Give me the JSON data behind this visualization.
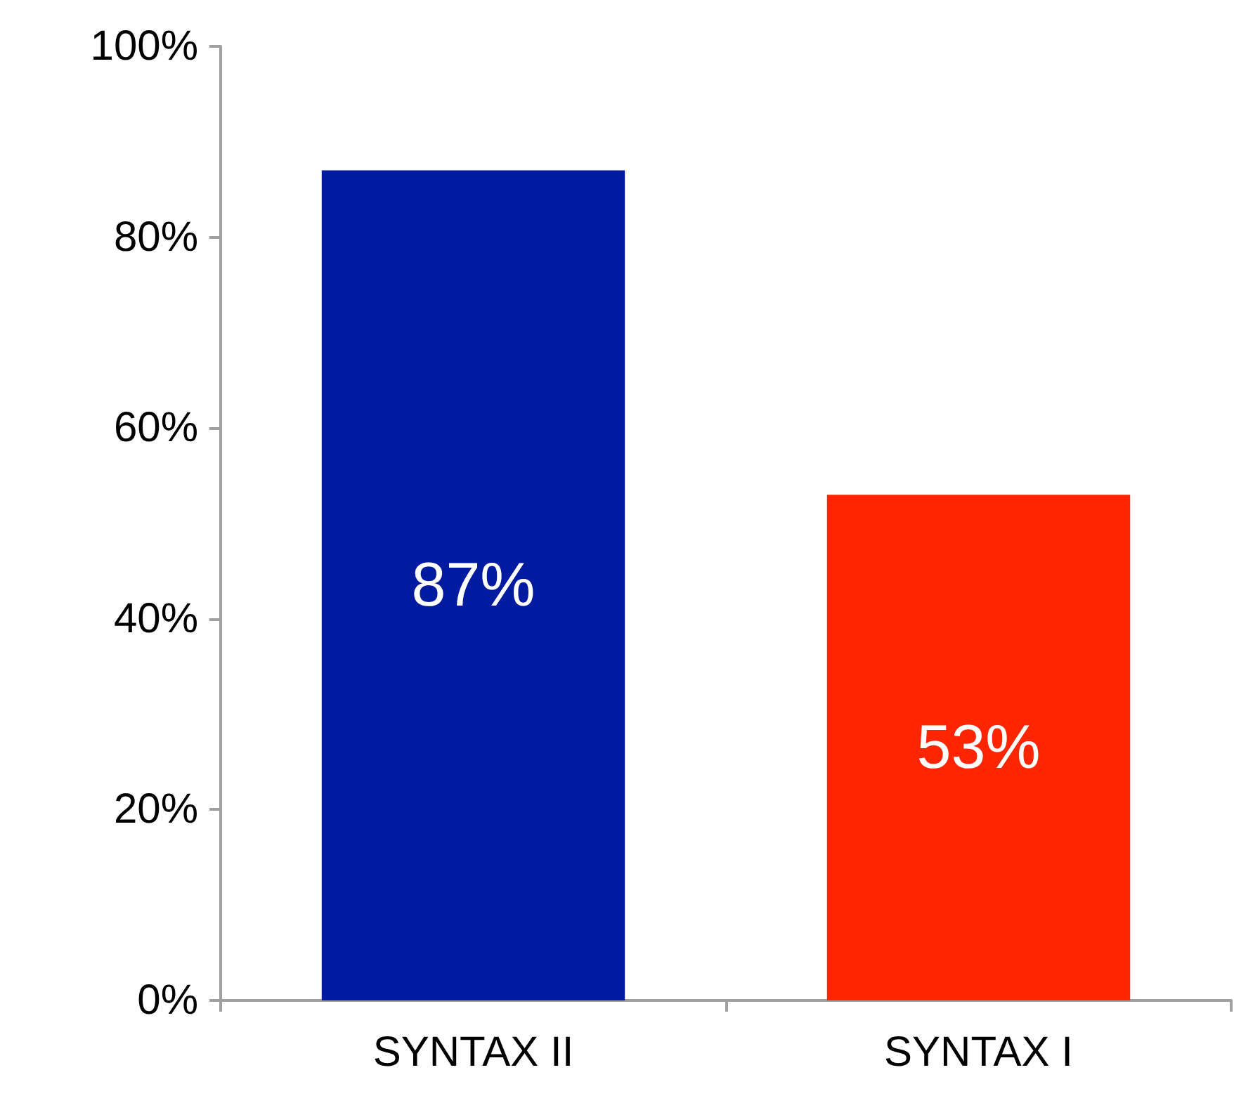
{
  "chart_data": {
    "type": "bar",
    "categories": [
      "SYNTAX II",
      "SYNTAX I"
    ],
    "values": [
      87,
      53
    ],
    "colors": [
      "#001ba0",
      "#ff2500"
    ],
    "ylim": [
      0,
      100
    ],
    "yticks": [
      {
        "value": 0,
        "label": "0%"
      },
      {
        "value": 20,
        "label": "20%"
      },
      {
        "value": 40,
        "label": "40%"
      },
      {
        "value": 60,
        "label": "60%"
      },
      {
        "value": 80,
        "label": "80%"
      },
      {
        "value": 100,
        "label": "100%"
      }
    ],
    "data_labels": true,
    "value_labels": [
      "87%",
      "53%"
    ]
  }
}
